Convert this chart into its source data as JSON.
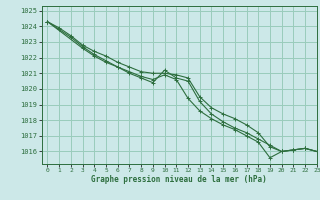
{
  "title": "Graphe pression niveau de la mer (hPa)",
  "xlim": [
    -0.5,
    23
  ],
  "ylim": [
    1015.2,
    1025.3
  ],
  "yticks": [
    1016,
    1017,
    1018,
    1019,
    1020,
    1021,
    1022,
    1023,
    1024,
    1025
  ],
  "xticks": [
    0,
    1,
    2,
    3,
    4,
    5,
    6,
    7,
    8,
    9,
    10,
    11,
    12,
    13,
    14,
    15,
    16,
    17,
    18,
    19,
    20,
    21,
    22,
    23
  ],
  "bg_color": "#cce8e8",
  "grid_color": "#99ccbb",
  "line_color": "#2d6e3e",
  "series1": {
    "x": [
      0,
      1,
      2,
      3,
      4,
      5,
      6,
      7,
      8,
      9,
      10,
      11,
      12,
      13,
      14,
      15,
      16,
      17,
      18,
      19,
      20,
      21,
      22,
      23
    ],
    "y": [
      1024.3,
      1023.9,
      1023.4,
      1022.8,
      1022.4,
      1022.1,
      1021.7,
      1021.4,
      1021.1,
      1021.0,
      1021.0,
      1020.9,
      1020.7,
      1019.5,
      1018.8,
      1018.4,
      1018.1,
      1017.7,
      1017.2,
      1016.3,
      1016.0,
      1016.1,
      1016.2,
      1016.0
    ]
  },
  "series2": {
    "x": [
      0,
      1,
      2,
      3,
      4,
      5,
      6,
      7,
      8,
      9,
      10,
      11,
      12,
      13,
      14,
      15,
      16,
      17,
      18,
      19,
      20,
      21,
      22,
      23
    ],
    "y": [
      1024.3,
      1023.8,
      1023.3,
      1022.7,
      1022.2,
      1021.8,
      1021.4,
      1021.1,
      1020.8,
      1020.6,
      1020.9,
      1020.6,
      1019.4,
      1018.6,
      1018.1,
      1017.7,
      1017.4,
      1017.0,
      1016.6,
      1015.6,
      1016.0,
      1016.1,
      1016.2,
      1016.0
    ]
  },
  "series3": {
    "x": [
      0,
      3,
      4,
      5,
      6,
      7,
      8,
      9,
      10,
      11,
      12,
      13,
      14,
      15,
      16,
      17,
      18,
      19,
      20,
      21,
      22,
      23
    ],
    "y": [
      1024.3,
      1022.6,
      1022.1,
      1021.7,
      1021.4,
      1021.0,
      1020.7,
      1020.4,
      1021.2,
      1020.7,
      1020.5,
      1019.2,
      1018.4,
      1017.9,
      1017.5,
      1017.2,
      1016.8,
      1016.4,
      1016.0,
      1016.1,
      1016.2,
      1016.0
    ]
  }
}
